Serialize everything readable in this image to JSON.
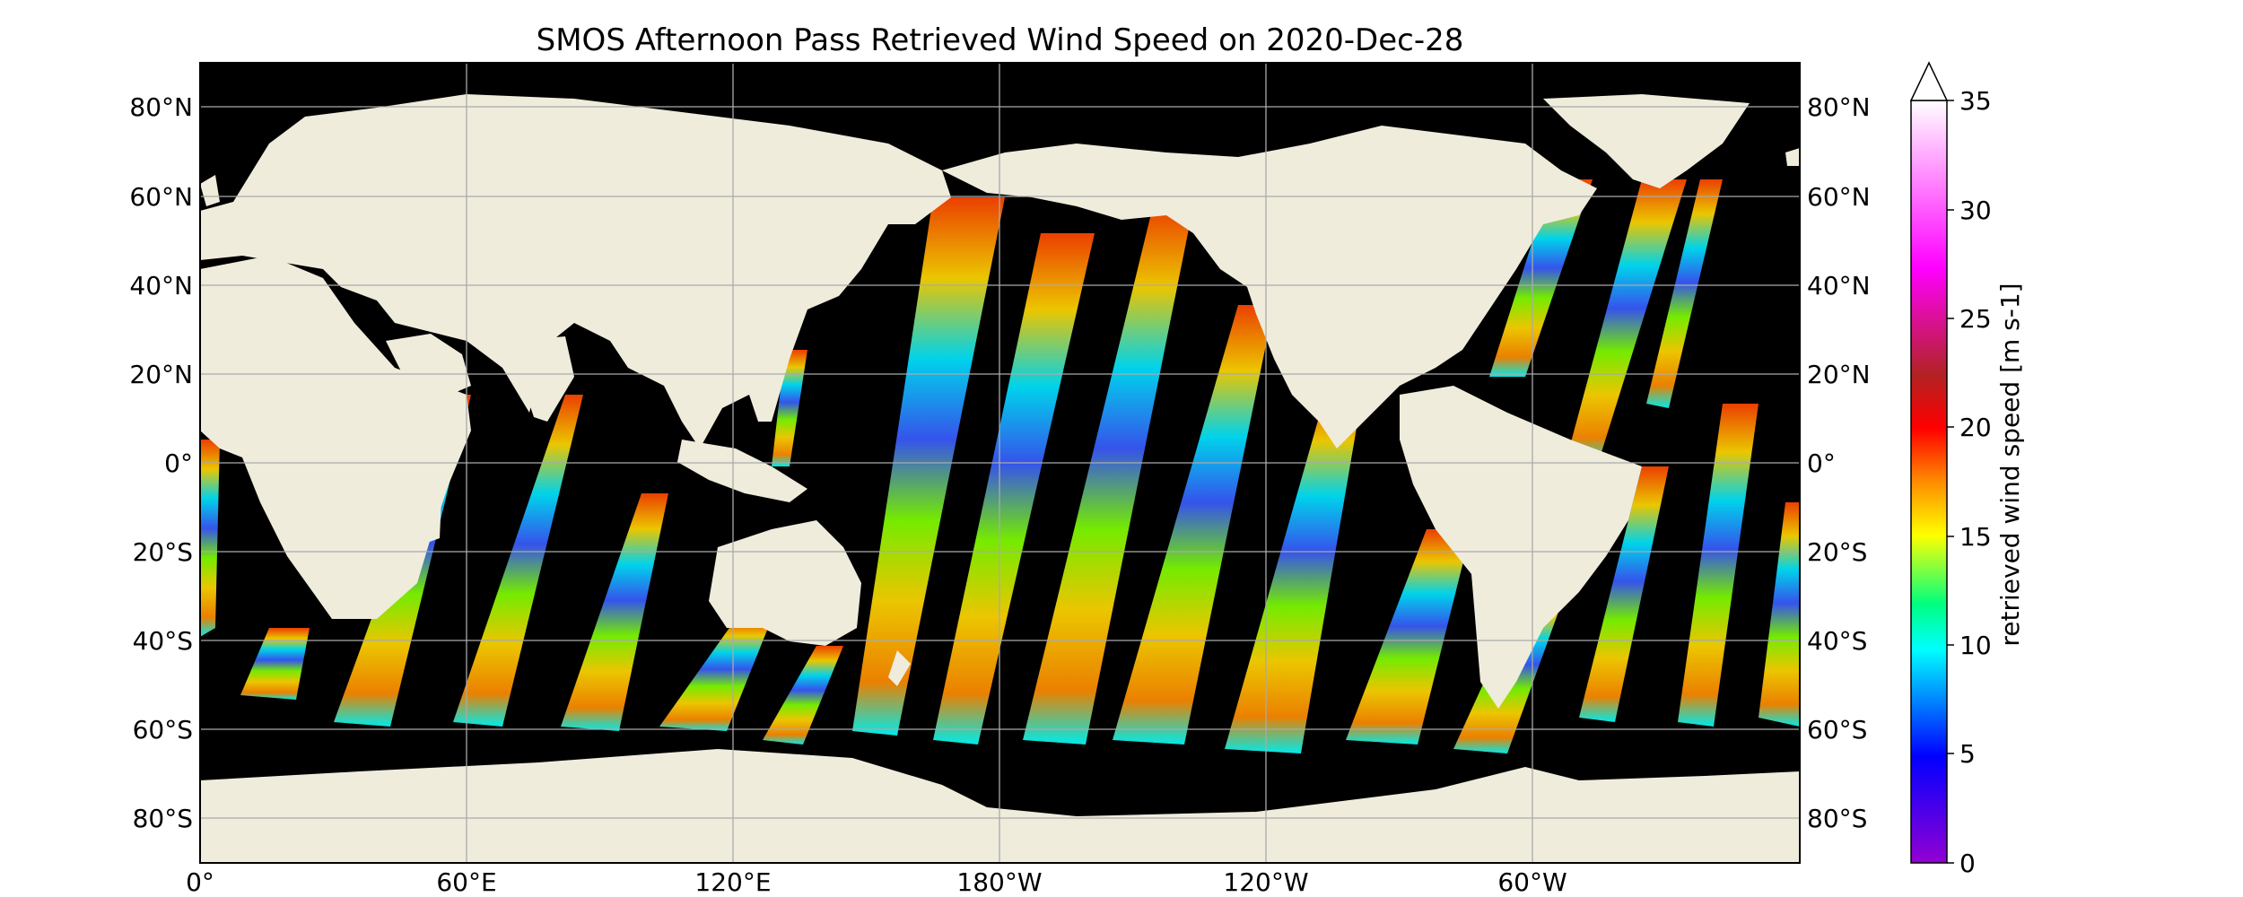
{
  "title": "SMOS Afternoon Pass Retrieved Wind Speed on 2020-Dec-28",
  "map": {
    "projection": "PlateCarree",
    "extent_lon": [
      0,
      360
    ],
    "extent_lat": [
      -90,
      90
    ],
    "ocean_no_data_color": "#000000",
    "land_color": "#efecdc",
    "gridlines": true
  },
  "lat_labels": [
    "80°N",
    "60°N",
    "40°N",
    "20°N",
    "0°",
    "20°S",
    "40°S",
    "60°S",
    "80°S"
  ],
  "lon_labels": [
    "0°",
    "60°E",
    "120°E",
    "180°W",
    "120°W",
    "60°W"
  ],
  "colorbar": {
    "label": "retrieved wind speed [m s-1]",
    "min": 0,
    "max": 35,
    "extend": "max",
    "ticks": [
      "0",
      "5",
      "10",
      "15",
      "20",
      "25",
      "30",
      "35"
    ],
    "colormap": [
      "#9400d3",
      "#0000ff",
      "#00ffff",
      "#00ff7f",
      "#ffff00",
      "#ff8c00",
      "#ff0000",
      "#b22222",
      "#ff00ff",
      "#ffffff"
    ]
  }
}
